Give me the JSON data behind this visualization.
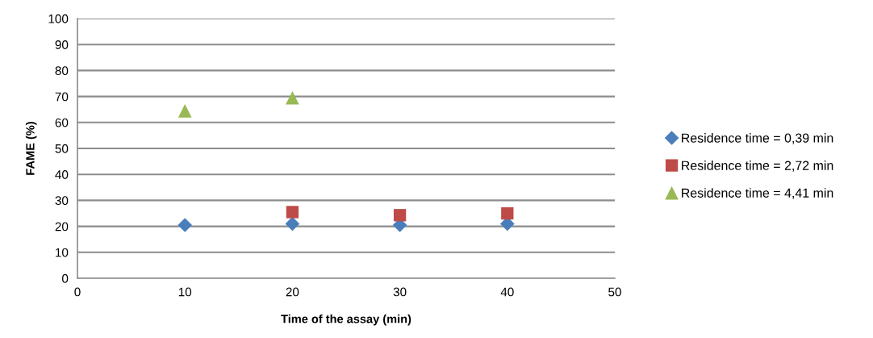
{
  "chart_data": {
    "type": "scatter",
    "xlabel": "Time of the assay (min)",
    "ylabel": "FAME (%)",
    "x": [
      10,
      20,
      30,
      40
    ],
    "series": [
      {
        "name": "Residence time = 0,39 min",
        "color": "#4a7ebb",
        "marker": "diamond",
        "values": [
          20.5,
          21,
          20.5,
          21
        ]
      },
      {
        "name": "Residence time = 2,72 min",
        "color": "#be4b48",
        "marker": "square",
        "values": [
          null,
          25.5,
          24.3,
          25
        ]
      },
      {
        "name": "Residence time = 4,41 min",
        "color": "#98b954",
        "marker": "triangle",
        "values": [
          64.5,
          69.5,
          null,
          null
        ]
      }
    ],
    "xlim": [
      0,
      50
    ],
    "xticks": [
      0,
      10,
      20,
      30,
      40,
      50
    ],
    "ylim": [
      0,
      100
    ],
    "yticks": [
      0,
      10,
      20,
      30,
      40,
      50,
      60,
      70,
      80,
      90,
      100
    ],
    "grid": "y",
    "legend": "right"
  }
}
